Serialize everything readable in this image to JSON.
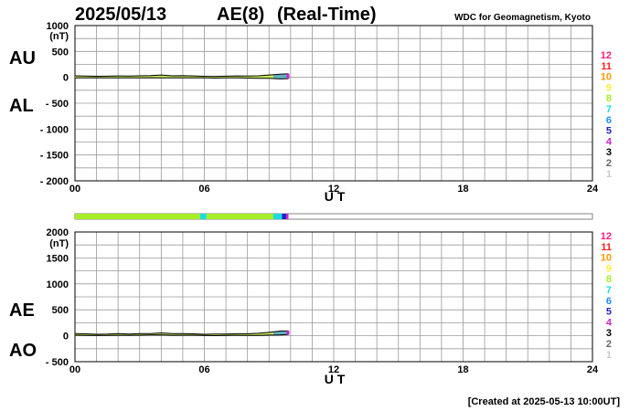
{
  "header": {
    "date": "2025/05/13",
    "index": "AE(8)",
    "mode": "(Real-Time)",
    "source": "WDC for Geomagnetism, Kyoto",
    "created": "[Created at 2025-05-13 10:00UT]"
  },
  "colors": {
    "grid": "#9a9a9a",
    "upper_fill": "#c6e85a",
    "outline": "#000000",
    "station_bar_border": "#666666"
  },
  "station_legend": [
    {
      "label": "12",
      "color": "#ff1c7a"
    },
    {
      "label": "11",
      "color": "#ff2020"
    },
    {
      "label": "10",
      "color": "#ff9a00"
    },
    {
      "label": "9",
      "color": "#ffee30"
    },
    {
      "label": "8",
      "color": "#a8ee28"
    },
    {
      "label": "7",
      "color": "#18dede"
    },
    {
      "label": "6",
      "color": "#1e8cff"
    },
    {
      "label": "5",
      "color": "#2222cc"
    },
    {
      "label": "4",
      "color": "#cc22cc"
    },
    {
      "label": "3",
      "color": "#000000"
    },
    {
      "label": "2",
      "color": "#666666"
    },
    {
      "label": "1",
      "color": "#cccccc"
    }
  ],
  "chart_data": [
    {
      "type": "area",
      "panel": "AU/AL",
      "labels": [
        "AU",
        "AL"
      ],
      "ylabel": "(nT)",
      "xlabel": "U T",
      "xlim": [
        0,
        24
      ],
      "ylim": [
        -2000,
        1000
      ],
      "xticks": [
        "00",
        "06",
        "12",
        "18",
        "24"
      ],
      "yticks": [
        1000,
        500,
        0,
        -500,
        -1000,
        -1500,
        -2000
      ],
      "ytick_labels": [
        "1000",
        "500",
        "0",
        "- 500",
        "- 1000",
        "- 1500",
        "- 2000"
      ],
      "series": [
        {
          "name": "AU",
          "x": [
            0,
            0.5,
            1,
            1.5,
            2,
            2.5,
            3,
            3.5,
            4,
            4.5,
            5,
            5.5,
            6,
            6.5,
            7,
            7.5,
            8,
            8.5,
            9,
            9.5,
            9.9
          ],
          "values": [
            30,
            25,
            20,
            22,
            28,
            24,
            30,
            35,
            45,
            30,
            32,
            28,
            20,
            18,
            22,
            28,
            25,
            30,
            45,
            60,
            70
          ]
        },
        {
          "name": "AL",
          "x": [
            0,
            0.5,
            1,
            1.5,
            2,
            2.5,
            3,
            3.5,
            4,
            4.5,
            5,
            5.5,
            6,
            6.5,
            7,
            7.5,
            8,
            8.5,
            9,
            9.5,
            9.9
          ],
          "values": [
            -10,
            -12,
            -8,
            -10,
            -12,
            -9,
            -11,
            -8,
            -10,
            -12,
            -10,
            -9,
            -8,
            -15,
            -12,
            -10,
            -14,
            -18,
            -20,
            -30,
            -25
          ]
        }
      ]
    },
    {
      "type": "area",
      "panel": "AE/AO",
      "labels": [
        "AE",
        "AO"
      ],
      "ylabel": "(nT)",
      "xlabel": "U T",
      "xlim": [
        0,
        24
      ],
      "ylim": [
        -500,
        2000
      ],
      "xticks": [
        "00",
        "06",
        "12",
        "18",
        "24"
      ],
      "yticks": [
        2000,
        1500,
        1000,
        500,
        0,
        -500
      ],
      "ytick_labels": [
        "2000",
        "1500",
        "1000",
        "500",
        "0",
        "- 500"
      ],
      "series": [
        {
          "name": "AE",
          "x": [
            0,
            0.5,
            1,
            1.5,
            2,
            2.5,
            3,
            3.5,
            4,
            4.5,
            5,
            5.5,
            6,
            6.5,
            7,
            7.5,
            8,
            8.5,
            9,
            9.5,
            9.9
          ],
          "values": [
            40,
            37,
            28,
            32,
            40,
            33,
            41,
            43,
            55,
            42,
            42,
            37,
            28,
            33,
            34,
            38,
            39,
            48,
            65,
            90,
            95
          ]
        },
        {
          "name": "AO",
          "x": [
            0,
            0.5,
            1,
            1.5,
            2,
            2.5,
            3,
            3.5,
            4,
            4.5,
            5,
            5.5,
            6,
            6.5,
            7,
            7.5,
            8,
            8.5,
            9,
            9.5,
            9.9
          ],
          "values": [
            10,
            7,
            6,
            6,
            8,
            8,
            10,
            14,
            18,
            9,
            11,
            10,
            6,
            2,
            5,
            9,
            6,
            6,
            13,
            15,
            23
          ]
        }
      ]
    }
  ],
  "station_bar": {
    "xlim": [
      0,
      24
    ],
    "segments": [
      {
        "start": 0,
        "end": 5.8,
        "station": "8"
      },
      {
        "start": 5.8,
        "end": 6.1,
        "station": "7"
      },
      {
        "start": 6.1,
        "end": 9.2,
        "station": "8"
      },
      {
        "start": 9.2,
        "end": 9.6,
        "station": "7"
      },
      {
        "start": 9.6,
        "end": 9.8,
        "station": "5"
      },
      {
        "start": 9.8,
        "end": 9.9,
        "station": "4"
      }
    ]
  }
}
